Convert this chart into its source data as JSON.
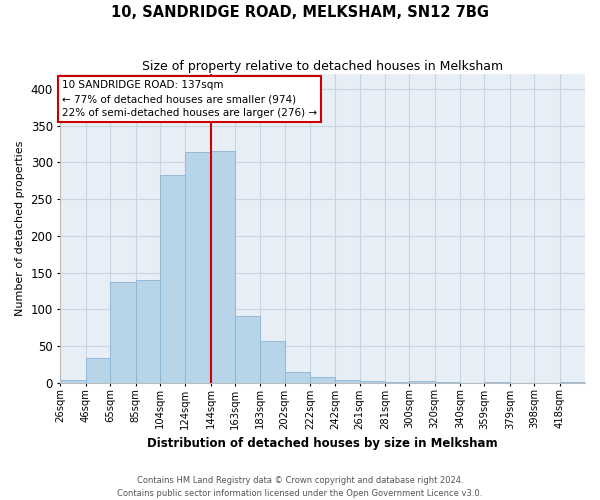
{
  "title1": "10, SANDRIDGE ROAD, MELKSHAM, SN12 7BG",
  "title2": "Size of property relative to detached houses in Melksham",
  "xlabel": "Distribution of detached houses by size in Melksham",
  "ylabel": "Number of detached properties",
  "bin_labels": [
    "26sqm",
    "46sqm",
    "65sqm",
    "85sqm",
    "104sqm",
    "124sqm",
    "144sqm",
    "163sqm",
    "183sqm",
    "202sqm",
    "222sqm",
    "242sqm",
    "261sqm",
    "281sqm",
    "300sqm",
    "320sqm",
    "340sqm",
    "359sqm",
    "379sqm",
    "398sqm",
    "418sqm"
  ],
  "bar_values": [
    4,
    33,
    137,
    140,
    283,
    314,
    315,
    91,
    57,
    14,
    8,
    4,
    2,
    1,
    3,
    1,
    0,
    1,
    0,
    0,
    1
  ],
  "bar_color": "#b8d4e8",
  "bar_edge_color": "#8ab4d4",
  "grid_color": "#c8d4e4",
  "background_color": "#e8eef6",
  "vline_color": "#cc0000",
  "annotation_title": "10 SANDRIDGE ROAD: 137sqm",
  "annotation_line1": "← 77% of detached houses are smaller (974)",
  "annotation_line2": "22% of semi-detached houses are larger (276) →",
  "annotation_box_color": "#ffffff",
  "annotation_box_edge": "#cc0000",
  "footer1": "Contains HM Land Registry data © Crown copyright and database right 2024.",
  "footer2": "Contains public sector information licensed under the Open Government Licence v3.0.",
  "ylim": [
    0,
    420
  ],
  "yticks": [
    0,
    50,
    100,
    150,
    200,
    250,
    300,
    350,
    400
  ],
  "bin_edges": [
    26,
    46,
    65,
    85,
    104,
    124,
    144,
    163,
    183,
    202,
    222,
    242,
    261,
    281,
    300,
    320,
    340,
    359,
    379,
    398,
    418,
    438
  ],
  "vline_x_index": 6
}
